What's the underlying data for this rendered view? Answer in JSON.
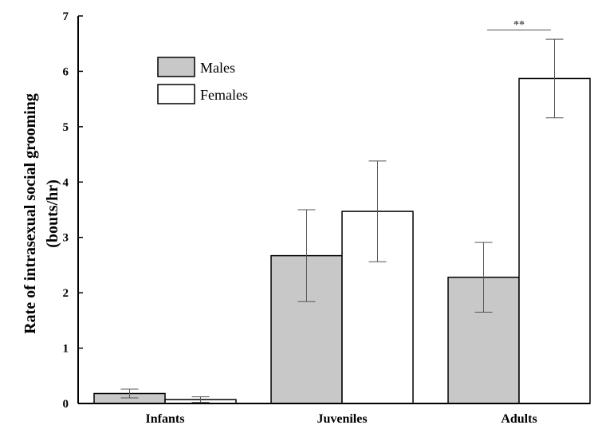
{
  "chart_data": {
    "type": "bar",
    "categories": [
      "Infants",
      "Juveniles",
      "Adults"
    ],
    "series": [
      {
        "name": "Males",
        "values": [
          0.18,
          2.67,
          2.28
        ],
        "error": [
          0.08,
          0.83,
          0.63
        ],
        "fill": "#c8c8c8"
      },
      {
        "name": "Females",
        "values": [
          0.07,
          3.47,
          5.87
        ],
        "error": [
          0.05,
          0.91,
          0.71
        ],
        "fill": "#ffffff"
      }
    ],
    "ylabel_line1": "Rate of intrasexual social grooming",
    "ylabel_line2": "(bouts/hr)",
    "ylim": [
      0,
      7
    ],
    "yticks": [
      0,
      1,
      2,
      3,
      4,
      5,
      6,
      7
    ],
    "legend_position": "top-left",
    "grid": false,
    "annotations": [
      {
        "text": "**",
        "category": "Adults",
        "y": 6.6
      }
    ]
  }
}
